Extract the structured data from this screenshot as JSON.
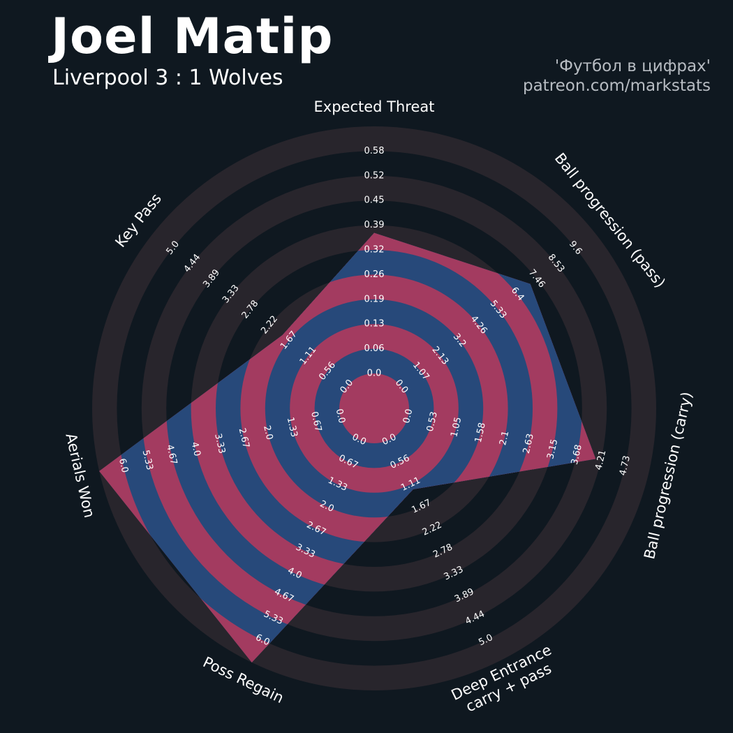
{
  "header": {
    "player_name": "Joel Matip",
    "match": "Liverpool 3 : 1 Wolves",
    "credit_line1": "'Футбол в цифрах'",
    "credit_line2": "patreon.com/markstats"
  },
  "colors": {
    "background": "#0f1820",
    "ring_dark": "#28252c",
    "ring_light": "#0f1820",
    "ring_pink": "#a33b60",
    "polygon_fill": "#27497a",
    "text": "#ffffff",
    "credit": "#b7bcc2"
  },
  "chart_data": {
    "type": "radar",
    "title": "Joel Matip",
    "subtitle": "Liverpool 3 : 1 Wolves",
    "parameters": [
      {
        "label": "Expected Threat",
        "ticks": [
          "0.0",
          "0.06",
          "0.13",
          "0.19",
          "0.26",
          "0.32",
          "0.39",
          "0.45",
          "0.52",
          "0.58"
        ],
        "range": [
          0,
          0.58
        ],
        "value": 0.33
      },
      {
        "label": "Ball progression (pass)",
        "ticks": [
          "0.0",
          "1.07",
          "2.13",
          "3.2",
          "4.26",
          "5.33",
          "6.4",
          "7.46",
          "8.53",
          "9.6"
        ],
        "range": [
          0,
          9.6
        ],
        "value": 6.4
      },
      {
        "label": "Ball progression (carry)",
        "ticks": [
          "0.0",
          "0.53",
          "1.05",
          "1.58",
          "2.1",
          "2.63",
          "3.15",
          "3.68",
          "4.21",
          "4.73"
        ],
        "range": [
          0,
          4.73
        ],
        "value": 3.68
      },
      {
        "label": "Deep Entrance\ncarry + pass",
        "ticks": [
          "0.0",
          "0.56",
          "1.11",
          "1.67",
          "2.22",
          "2.78",
          "3.33",
          "3.89",
          "4.44",
          "5.0"
        ],
        "range": [
          0,
          5.0
        ],
        "value": 1.11
      },
      {
        "label": "Poss Regain",
        "ticks": [
          "0.0",
          "0.67",
          "1.33",
          "2.0",
          "2.67",
          "3.33",
          "4.0",
          "4.67",
          "5.33",
          "6.0"
        ],
        "range": [
          0,
          6.0
        ],
        "value": 6.0
      },
      {
        "label": "Aerials Won",
        "ticks": [
          "0.0",
          "0.67",
          "1.33",
          "2.0",
          "2.67",
          "3.33",
          "4.0",
          "4.67",
          "5.33",
          "6.0"
        ],
        "range": [
          0,
          6.0
        ],
        "value": 6.0
      },
      {
        "label": "Key Pass",
        "ticks": [
          "0.0",
          "0.56",
          "1.11",
          "1.67",
          "2.22",
          "2.78",
          "3.33",
          "3.89",
          "4.44",
          "5.0"
        ],
        "range": [
          0,
          5.0
        ],
        "value": 1.67
      }
    ]
  }
}
